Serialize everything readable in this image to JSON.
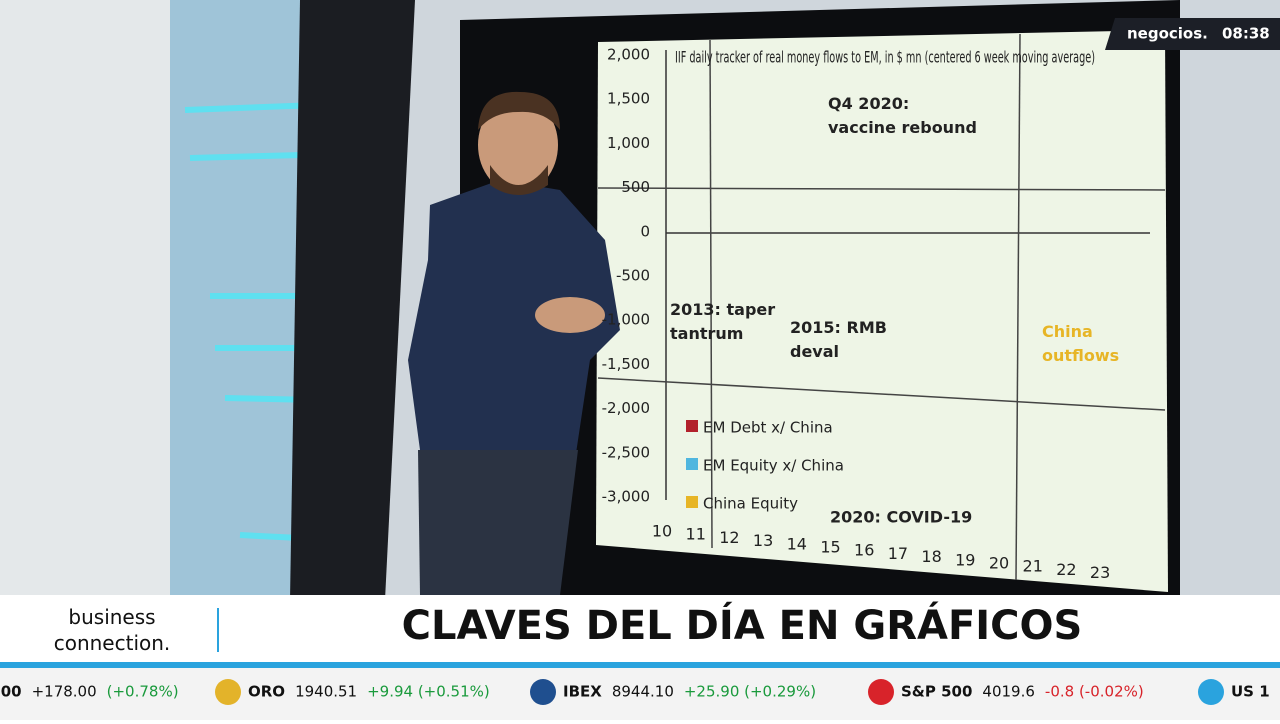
{
  "broadcast": {
    "channel": "negocios.",
    "time": "08:38"
  },
  "screen_chart": {
    "title": "IIF daily tracker of real money flows to EM, in $ mn (centered 6 week moving average)",
    "yticks": [
      "2,000",
      "1,500",
      "1,000",
      "500",
      "0",
      "-500",
      "-1,000",
      "-1,500",
      "-2,000",
      "-2,500",
      "-3,000"
    ],
    "xticks": [
      "10",
      "11",
      "12",
      "13",
      "14",
      "15",
      "16",
      "17",
      "18",
      "19",
      "20",
      "21",
      "22",
      "23"
    ],
    "annotations": [
      "Q4 2020: vaccine rebound",
      "2013: taper tantrum",
      "2015: RMB deval",
      "China outflows",
      "2020: COVID-19"
    ],
    "legend": [
      {
        "name": "EM Debt x/ China",
        "color": "#b2212b"
      },
      {
        "name": "EM Equity x/ China",
        "color": "#4fb6df"
      },
      {
        "name": "China Equity",
        "color": "#e7b526"
      }
    ]
  },
  "lower_third": {
    "program": "business connection.",
    "headline": "CLAVES DEL DÍA EN GRÁFICOS"
  },
  "ticker": [
    {
      "name": ".00",
      "price": "+178.00",
      "change": "(+0.78%)"
    },
    {
      "name": "ORO",
      "price": "1940.51",
      "change": "+9.94 (+0.51%)"
    },
    {
      "name": "IBEX",
      "price": "8944.10",
      "change": "+25.90 (+0.29%)"
    },
    {
      "name": "S&P 500",
      "price": "4019.6",
      "change": "-0.8 (-0.02%)"
    },
    {
      "name": "US 1",
      "price": "",
      "change": ""
    }
  ]
}
